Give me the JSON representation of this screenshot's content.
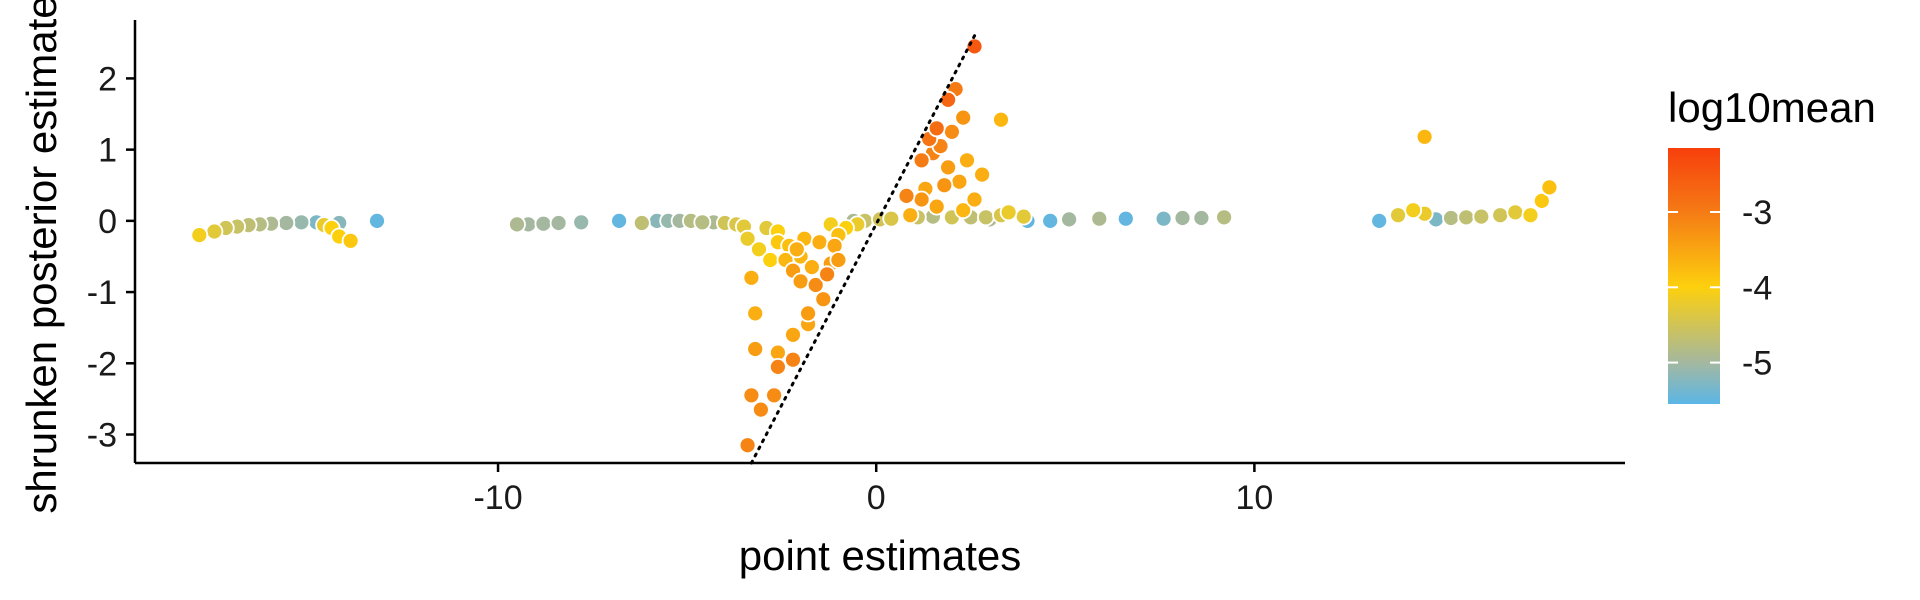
{
  "chart_data": {
    "type": "scatter",
    "title": "",
    "xlabel": "point estimates",
    "ylabel": "shrunken posterior estimates",
    "xlim": [
      -19.6,
      19.8
    ],
    "ylim": [
      -3.4,
      2.75
    ],
    "x_ticks": [
      {
        "value": -10,
        "label": "-10"
      },
      {
        "value": 0,
        "label": "0"
      },
      {
        "value": 10,
        "label": "10"
      }
    ],
    "y_ticks": [
      {
        "value": -3,
        "label": "-3"
      },
      {
        "value": -2,
        "label": "-2"
      },
      {
        "value": -1,
        "label": "-1"
      },
      {
        "value": 0,
        "label": "0"
      },
      {
        "value": 1,
        "label": "1"
      },
      {
        "value": 2,
        "label": "2"
      }
    ],
    "grid": false,
    "reference_line": {
      "style": "dotted",
      "color": "#000000",
      "from": [
        -3.3,
        -3.4
      ],
      "to": [
        2.65,
        2.65
      ]
    },
    "color_scale": {
      "variable": "log10mean",
      "range": [
        -5.55,
        -2.15
      ],
      "stops": [
        {
          "value": -5.55,
          "color": "#5bb6e6"
        },
        {
          "value": -5.0,
          "color": "#a4b8a0"
        },
        {
          "value": -4.0,
          "color": "#fdd00e"
        },
        {
          "value": -3.0,
          "color": "#f57b15"
        },
        {
          "value": -2.15,
          "color": "#f73f0c"
        }
      ],
      "ticks": [
        {
          "value": -3,
          "label": "-3"
        },
        {
          "value": -4,
          "label": "-4"
        },
        {
          "value": -5,
          "label": "-5"
        }
      ]
    },
    "legend": {
      "title": "log10mean",
      "position": "right"
    },
    "points": [
      [
        -17.9,
        -0.2,
        -4.1
      ],
      [
        -17.5,
        -0.15,
        -4.3
      ],
      [
        -17.2,
        -0.1,
        -4.5
      ],
      [
        -16.9,
        -0.08,
        -4.6
      ],
      [
        -16.6,
        -0.06,
        -4.7
      ],
      [
        -16.3,
        -0.05,
        -4.8
      ],
      [
        -16.0,
        -0.04,
        -4.9
      ],
      [
        -15.6,
        -0.03,
        -5.0
      ],
      [
        -15.2,
        -0.02,
        -5.1
      ],
      [
        -14.8,
        -0.02,
        -5.3
      ],
      [
        -14.4,
        -0.1,
        -4.0
      ],
      [
        -14.2,
        -0.22,
        -4.0
      ],
      [
        -13.9,
        -0.28,
        -3.9
      ],
      [
        -14.6,
        -0.06,
        -4.2
      ],
      [
        -14.2,
        -0.03,
        -5.2
      ],
      [
        -13.2,
        0.0,
        -5.5
      ],
      [
        -9.5,
        -0.05,
        -4.9
      ],
      [
        -9.2,
        -0.05,
        -5.0
      ],
      [
        -8.8,
        -0.04,
        -5.0
      ],
      [
        -8.4,
        -0.03,
        -5.0
      ],
      [
        -7.8,
        -0.02,
        -5.1
      ],
      [
        -6.8,
        0.0,
        -5.5
      ],
      [
        -6.2,
        -0.03,
        -4.7
      ],
      [
        -5.8,
        0.0,
        -5.2
      ],
      [
        -5.5,
        0.0,
        -5.1
      ],
      [
        -5.2,
        0.0,
        -5.0
      ],
      [
        -4.9,
        0.0,
        -4.8
      ],
      [
        -4.6,
        -0.02,
        -4.8
      ],
      [
        -4.3,
        -0.02,
        -4.9
      ],
      [
        -4.0,
        -0.03,
        -4.5
      ],
      [
        -3.7,
        -0.05,
        -4.4
      ],
      [
        -3.5,
        -0.08,
        -4.3
      ],
      [
        -3.4,
        -3.15,
        -3.1
      ],
      [
        -3.3,
        -2.45,
        -3.2
      ],
      [
        -3.05,
        -2.65,
        -3.2
      ],
      [
        -2.7,
        -2.45,
        -3.2
      ],
      [
        -3.2,
        -1.8,
        -3.4
      ],
      [
        -3.2,
        -1.3,
        -3.6
      ],
      [
        -3.3,
        -0.8,
        -3.6
      ],
      [
        -2.6,
        -2.05,
        -3.1
      ],
      [
        -2.6,
        -1.85,
        -3.5
      ],
      [
        -2.2,
        -1.95,
        -3.1
      ],
      [
        -2.2,
        -1.6,
        -3.5
      ],
      [
        -1.8,
        -1.45,
        -3.5
      ],
      [
        -1.8,
        -1.3,
        -3.4
      ],
      [
        -1.4,
        -1.1,
        -3.3
      ],
      [
        -1.6,
        -0.9,
        -3.2
      ],
      [
        -1.3,
        -0.75,
        -3.1
      ],
      [
        -1.2,
        -0.6,
        -3.4
      ],
      [
        -1.0,
        -0.55,
        -3.4
      ],
      [
        -2.0,
        -0.5,
        -3.7
      ],
      [
        -2.6,
        -0.3,
        -3.9
      ],
      [
        -2.2,
        -0.7,
        -3.4
      ],
      [
        -2.0,
        -0.85,
        -3.4
      ],
      [
        -1.7,
        -0.65,
        -3.6
      ],
      [
        -2.8,
        -0.55,
        -4.0
      ],
      [
        -3.1,
        -0.4,
        -4.1
      ],
      [
        -3.4,
        -0.25,
        -4.2
      ],
      [
        -1.5,
        -0.3,
        -3.6
      ],
      [
        -1.0,
        -0.2,
        -3.8
      ],
      [
        -0.8,
        -0.1,
        -4.0
      ],
      [
        -0.5,
        -0.05,
        -4.2
      ],
      [
        -2.6,
        -0.15,
        -4.0
      ],
      [
        -2.3,
        -0.35,
        -3.8
      ],
      [
        -1.9,
        -0.25,
        -3.7
      ],
      [
        -2.9,
        -0.1,
        -4.3
      ],
      [
        -1.2,
        -0.05,
        -4.1
      ],
      [
        -0.3,
        0.0,
        -4.6
      ],
      [
        -0.6,
        0.0,
        -4.9
      ],
      [
        -2.1,
        -0.4,
        -3.6
      ],
      [
        -2.4,
        -0.55,
        -3.7
      ],
      [
        -1.1,
        -0.35,
        -3.5
      ],
      [
        0.1,
        0.02,
        -4.5
      ],
      [
        0.4,
        0.03,
        -4.4
      ],
      [
        0.8,
        0.35,
        -3.1
      ],
      [
        0.9,
        0.08,
        -3.6
      ],
      [
        1.3,
        0.45,
        -3.5
      ],
      [
        1.2,
        0.85,
        -3.0
      ],
      [
        1.4,
        1.15,
        -2.9
      ],
      [
        1.6,
        1.3,
        -2.8
      ],
      [
        1.9,
        1.7,
        -2.7
      ],
      [
        2.1,
        1.85,
        -3.0
      ],
      [
        2.6,
        2.45,
        -2.5
      ],
      [
        1.5,
        0.95,
        -3.1
      ],
      [
        1.7,
        1.05,
        -3.1
      ],
      [
        1.9,
        0.75,
        -3.4
      ],
      [
        2.2,
        0.55,
        -3.5
      ],
      [
        2.4,
        0.85,
        -3.6
      ],
      [
        2.8,
        0.65,
        -3.6
      ],
      [
        2.3,
        1.45,
        -3.3
      ],
      [
        2.0,
        1.25,
        -3.2
      ],
      [
        1.8,
        0.5,
        -3.3
      ],
      [
        2.6,
        0.3,
        -3.6
      ],
      [
        2.3,
        0.15,
        -3.7
      ],
      [
        1.6,
        0.2,
        -3.5
      ],
      [
        1.2,
        0.3,
        -3.3
      ],
      [
        2.9,
        0.05,
        -4.6
      ],
      [
        3.3,
        0.08,
        -4.4
      ],
      [
        3.5,
        0.12,
        -4.2
      ],
      [
        3.9,
        0.06,
        -4.3
      ],
      [
        4.0,
        0.0,
        -5.5
      ],
      [
        3.3,
        1.42,
        -3.7
      ],
      [
        2.0,
        0.05,
        -4.5
      ],
      [
        2.5,
        0.05,
        -4.7
      ],
      [
        1.1,
        0.05,
        -4.6
      ],
      [
        1.5,
        0.06,
        -4.8
      ],
      [
        3.0,
        0.02,
        -4.9
      ],
      [
        4.6,
        0.0,
        -5.5
      ],
      [
        5.1,
        0.02,
        -5.0
      ],
      [
        5.9,
        0.03,
        -4.9
      ],
      [
        6.6,
        0.03,
        -5.5
      ],
      [
        7.6,
        0.03,
        -5.3
      ],
      [
        8.1,
        0.04,
        -5.0
      ],
      [
        8.6,
        0.04,
        -5.0
      ],
      [
        9.2,
        0.05,
        -4.8
      ],
      [
        13.3,
        0.0,
        -5.5
      ],
      [
        13.8,
        0.08,
        -4.3
      ],
      [
        14.2,
        0.15,
        -4.1
      ],
      [
        14.5,
        0.1,
        -4.2
      ],
      [
        14.8,
        0.02,
        -5.3
      ],
      [
        15.2,
        0.04,
        -4.8
      ],
      [
        15.6,
        0.05,
        -4.7
      ],
      [
        16.0,
        0.06,
        -4.6
      ],
      [
        16.5,
        0.08,
        -4.5
      ],
      [
        16.9,
        0.12,
        -4.3
      ],
      [
        17.3,
        0.08,
        -4.1
      ],
      [
        17.6,
        0.28,
        -3.9
      ],
      [
        17.8,
        0.47,
        -3.8
      ],
      [
        14.5,
        1.18,
        -3.7
      ]
    ]
  }
}
